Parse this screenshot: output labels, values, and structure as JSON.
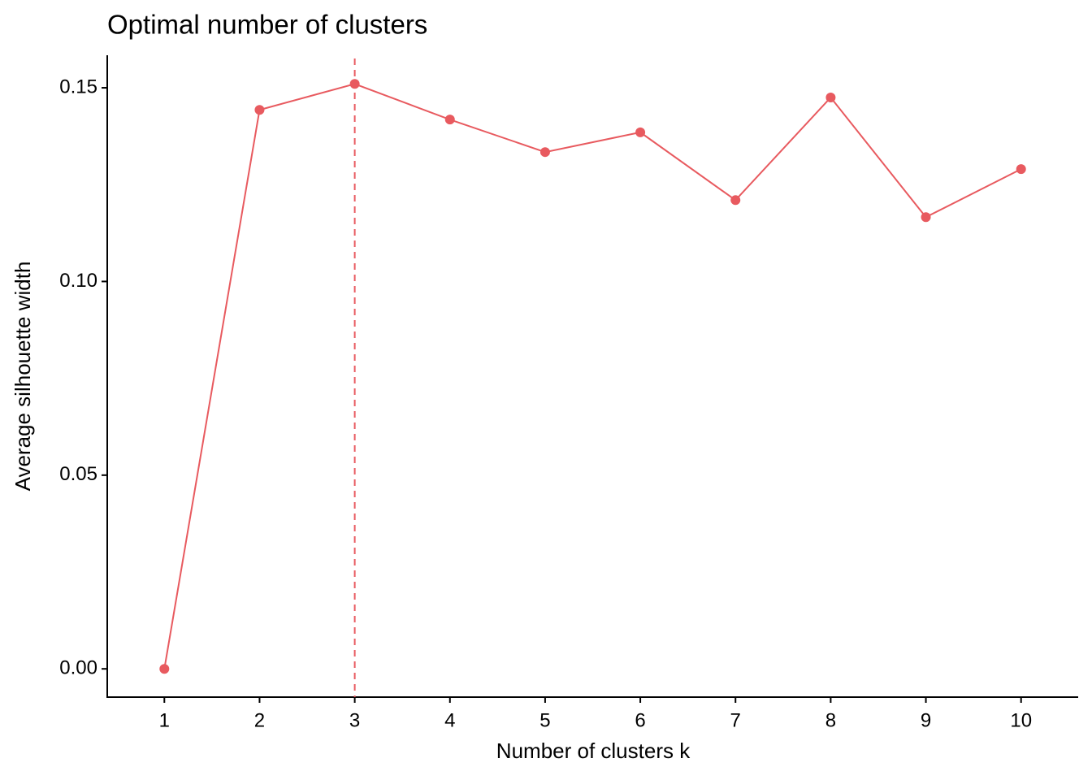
{
  "chart_data": {
    "type": "line",
    "title": "Optimal number of clusters",
    "x_label": "Number of clusters k",
    "y_label": "Average silhouette width",
    "categories": [
      "1",
      "2",
      "3",
      "4",
      "5",
      "6",
      "7",
      "8",
      "9",
      "10"
    ],
    "values": [
      0,
      0.1443,
      0.151,
      0.1418,
      0.1334,
      0.1385,
      0.121,
      0.1475,
      0.1166,
      0.129
    ],
    "color": "#e85a5f",
    "ylim": [
      -0.0073,
      0.1584
    ],
    "yticks": [
      {
        "value": 0,
        "label": "0.00"
      },
      {
        "value": 0.05,
        "label": "0.05"
      },
      {
        "value": 0.1,
        "label": "0.10"
      },
      {
        "value": 0.15,
        "label": "0.15"
      }
    ],
    "reference_line": {
      "x": 3,
      "color": "#e85a5f",
      "dashed": true
    },
    "grid": false
  }
}
